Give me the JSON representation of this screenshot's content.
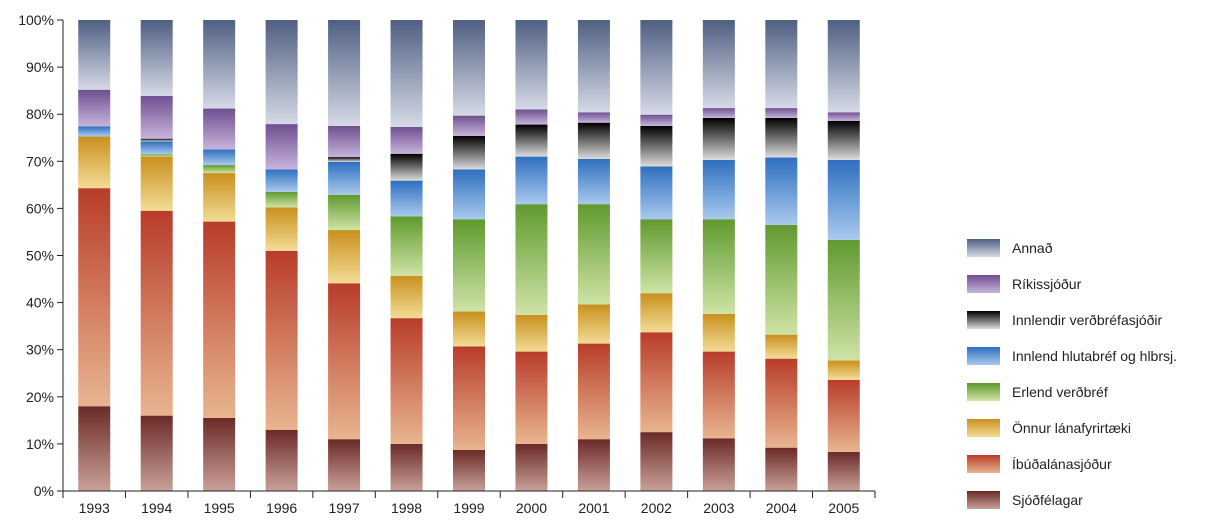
{
  "chart_data": {
    "type": "bar",
    "stacked": true,
    "categories": [
      "1993",
      "1994",
      "1995",
      "1996",
      "1997",
      "1998",
      "1999",
      "2000",
      "2001",
      "2002",
      "2003",
      "2004",
      "2005"
    ],
    "y_ticks": [
      "0%",
      "10%",
      "20%",
      "30%",
      "40%",
      "50%",
      "60%",
      "70%",
      "80%",
      "90%",
      "100%"
    ],
    "ylim": [
      0,
      100
    ],
    "legend_position": "right",
    "series": [
      {
        "name": "Sjóðfélagar",
        "color_dark": "#6b2a28",
        "color_light": "#c9a198",
        "values": [
          18,
          16,
          15.5,
          13,
          11,
          10,
          8.7,
          10,
          11,
          12.5,
          11.2,
          9.2,
          8.3
        ]
      },
      {
        "name": "Íbúðalánasjóður",
        "color_dark": "#b83c2a",
        "color_light": "#e8b590",
        "values": [
          46.3,
          43.5,
          41.7,
          38,
          33.1,
          26.7,
          22,
          19.6,
          20.3,
          21.2,
          18.4,
          18.9,
          15.3
        ]
      },
      {
        "name": "Önnur lánafyrirtæki",
        "color_dark": "#c9901e",
        "color_light": "#f3dc95",
        "values": [
          11,
          11.5,
          10.3,
          9.2,
          11.3,
          9,
          7.4,
          7.8,
          8.3,
          8.3,
          8,
          5.1,
          4.1
        ]
      },
      {
        "name": "Erlend verðbréf",
        "color_dark": "#5f9a2e",
        "color_light": "#cfe3a6",
        "values": [
          0,
          0.5,
          1.7,
          3.3,
          7.5,
          12.6,
          19.6,
          23.5,
          21.3,
          15.7,
          20.1,
          23.3,
          25.6
        ]
      },
      {
        "name": "Innlend hlutabréf og hlbrsj.",
        "color_dark": "#2e6fbf",
        "color_light": "#a9c9ee",
        "values": [
          2.1,
          2.7,
          3.3,
          4.8,
          7,
          7.6,
          10.6,
          10.1,
          9.6,
          11.2,
          12.6,
          14.3,
          17
        ]
      },
      {
        "name": "Innlendir verðbréfasjóðir",
        "color_dark": "#000000",
        "color_light": "#dcdcdc",
        "values": [
          0,
          0.6,
          0,
          0,
          1,
          5.7,
          7.1,
          6.8,
          7.7,
          8.6,
          8.9,
          8.4,
          8.3
        ]
      },
      {
        "name": "Ríkissjóður",
        "color_dark": "#6f4f90",
        "color_light": "#c7b4dc",
        "values": [
          7.8,
          9.1,
          8.7,
          9.6,
          6.6,
          5.7,
          4.3,
          3.2,
          2.2,
          2.4,
          2.1,
          2.1,
          1.8
        ]
      },
      {
        "name": "Annað",
        "color_dark": "#4f5f82",
        "color_light": "#d6dae6",
        "values": [
          14.8,
          16.1,
          18.8,
          22.1,
          22.5,
          22.7,
          20.3,
          19,
          19.6,
          20.1,
          18.7,
          18.7,
          19.6
        ]
      }
    ]
  }
}
